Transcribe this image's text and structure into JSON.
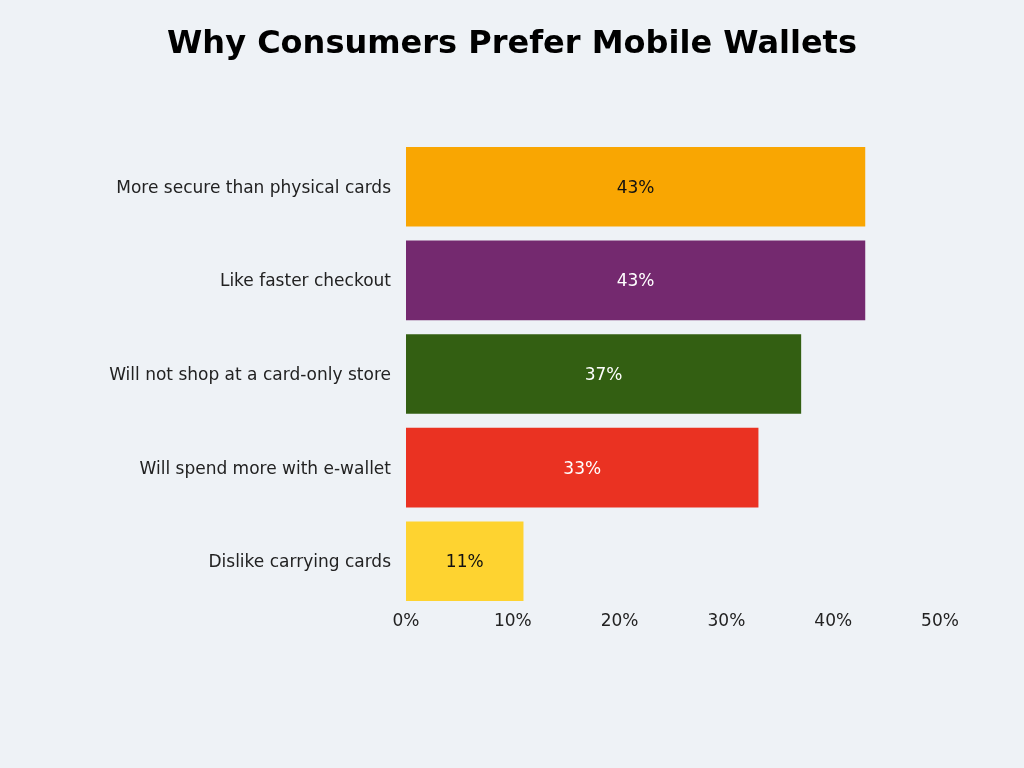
{
  "chart_data": {
    "type": "bar",
    "orientation": "horizontal",
    "title": "Why Consumers Prefer Mobile Wallets",
    "categories": [
      "More secure than physical cards",
      "Like faster checkout",
      "Will not shop at a card-only store",
      "Will spend more with e-wallet",
      "Dislike carrying cards"
    ],
    "values": [
      43,
      43,
      37,
      33,
      11
    ],
    "colors": [
      "#f9a602",
      "#74296f",
      "#335f12",
      "#ea3222",
      "#fed330"
    ],
    "value_labels": [
      "43%",
      "43%",
      "37%",
      "33%",
      "11%"
    ],
    "xlim": [
      0,
      50
    ],
    "xticks": [
      {
        "value": 0,
        "label": "0%"
      },
      {
        "value": 10,
        "label": "10%"
      },
      {
        "value": 20,
        "label": "20%"
      },
      {
        "value": 30,
        "label": "30%"
      },
      {
        "value": 40,
        "label": "40%"
      },
      {
        "value": 50,
        "label": "50%"
      }
    ],
    "grid": false
  }
}
